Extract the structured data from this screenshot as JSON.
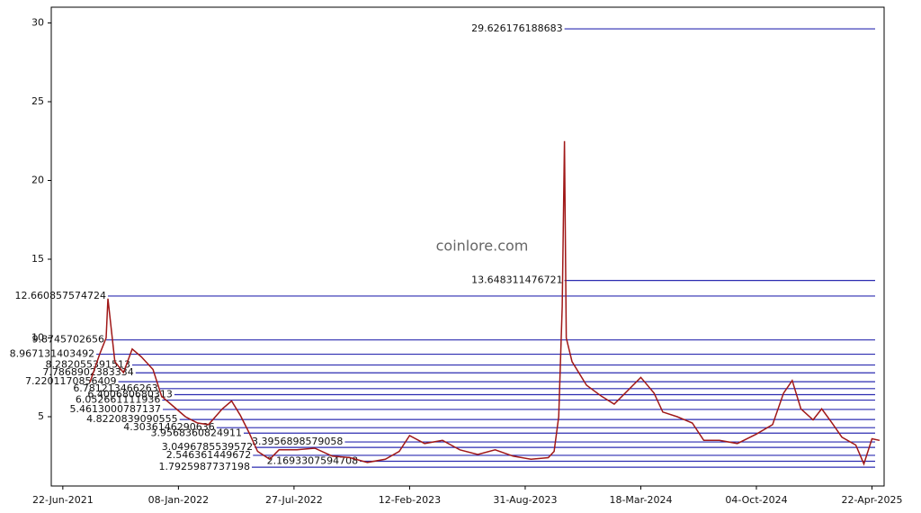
{
  "chart_data": {
    "type": "line",
    "watermark": "coinlore.com",
    "xlim": [
      "2021-06-02",
      "2025-05-13"
    ],
    "xticks": [
      {
        "value": "2021-06-22",
        "label": "22-Jun-2021"
      },
      {
        "value": "2022-01-08",
        "label": "08-Jan-2022"
      },
      {
        "value": "2022-07-27",
        "label": "27-Jul-2022"
      },
      {
        "value": "2023-02-12",
        "label": "12-Feb-2023"
      },
      {
        "value": "2023-08-31",
        "label": "31-Aug-2023"
      },
      {
        "value": "2024-03-18",
        "label": "18-Mar-2024"
      },
      {
        "value": "2024-10-04",
        "label": "04-Oct-2024"
      },
      {
        "value": "2025-04-22",
        "label": "22-Apr-2025"
      }
    ],
    "ylim": [
      0.6,
      31
    ],
    "yticks": [
      5,
      10,
      15,
      20,
      25,
      30
    ],
    "series": [
      {
        "color": "#a01818",
        "x": [
          "2021-08-08",
          "2021-08-25",
          "2021-09-05",
          "2021-09-08",
          "2021-09-20",
          "2021-10-05",
          "2021-10-20",
          "2021-11-05",
          "2021-11-25",
          "2021-12-10",
          "2022-01-01",
          "2022-01-20",
          "2022-02-10",
          "2022-03-01",
          "2022-03-25",
          "2022-04-10",
          "2022-04-25",
          "2022-05-10",
          "2022-05-25",
          "2022-06-15",
          "2022-07-01",
          "2022-08-01",
          "2022-09-01",
          "2022-10-01",
          "2022-11-01",
          "2022-12-01",
          "2023-01-01",
          "2023-01-25",
          "2023-02-12",
          "2023-03-10",
          "2023-04-10",
          "2023-05-10",
          "2023-06-10",
          "2023-07-10",
          "2023-08-10",
          "2023-09-10",
          "2023-10-10",
          "2023-10-20",
          "2023-10-28",
          "2023-11-03",
          "2023-11-07",
          "2023-11-10",
          "2023-11-20",
          "2023-12-15",
          "2024-01-10",
          "2024-02-01",
          "2024-02-20",
          "2024-03-18",
          "2024-04-10",
          "2024-04-25",
          "2024-05-20",
          "2024-06-15",
          "2024-07-05",
          "2024-08-01",
          "2024-09-01",
          "2024-10-04",
          "2024-11-01",
          "2024-11-20",
          "2024-12-05",
          "2024-12-20",
          "2025-01-10",
          "2025-01-25",
          "2025-02-10",
          "2025-03-01",
          "2025-03-25",
          "2025-04-08",
          "2025-04-22",
          "2025-05-05"
        ],
        "values": [
          7.2,
          9,
          10,
          12.5,
          8.5,
          7.8,
          9.3,
          8.8,
          8,
          6.3,
          5.6,
          5,
          4.6,
          4.5,
          5.5,
          6,
          5.1,
          4,
          2.8,
          2.3,
          2.9,
          2.9,
          3.0,
          2.5,
          2.4,
          2.1,
          2.3,
          2.8,
          3.8,
          3.3,
          3.5,
          2.9,
          2.6,
          2.9,
          2.5,
          2.3,
          2.4,
          2.8,
          5,
          12,
          22.5,
          10,
          8.5,
          7,
          6.3,
          5.8,
          6.5,
          7.5,
          6.5,
          5.3,
          5,
          4.6,
          3.5,
          3.5,
          3.3,
          3.9,
          4.5,
          6.5,
          7.3,
          5.5,
          4.8,
          5.5,
          4.7,
          3.7,
          3.2,
          2.0,
          3.6,
          3.5
        ]
      }
    ],
    "levels": {
      "color": "#2b2bb0",
      "values": [
        29.626176188683,
        13.648311476721,
        12.660857574724,
        9.8745702656,
        8.967131403492,
        8.282055391513,
        7.7868902383334,
        7.2201170856409,
        6.781213466263,
        6.400680680313,
        6.052661111936,
        5.4613000787137,
        4.8220839090555,
        4.3036146290636,
        3.9568360824911,
        3.3956898579058,
        3.0496785539572,
        2.546361449672,
        2.1693307594708,
        1.7925987737198
      ],
      "x": [
        "2023-11-07",
        "2023-11-07",
        "2021-09-08",
        "2021-09-05",
        "2021-08-19",
        "2021-10-20",
        "2021-10-26",
        "2021-09-26",
        "2021-12-07",
        "2022-01-01",
        "2021-12-11",
        "2021-12-12",
        "2022-01-10",
        "2022-03-15",
        "2022-05-01",
        "2022-10-23",
        "2022-05-20",
        "2022-05-17",
        "2022-11-18",
        "2022-05-15"
      ]
    }
  }
}
